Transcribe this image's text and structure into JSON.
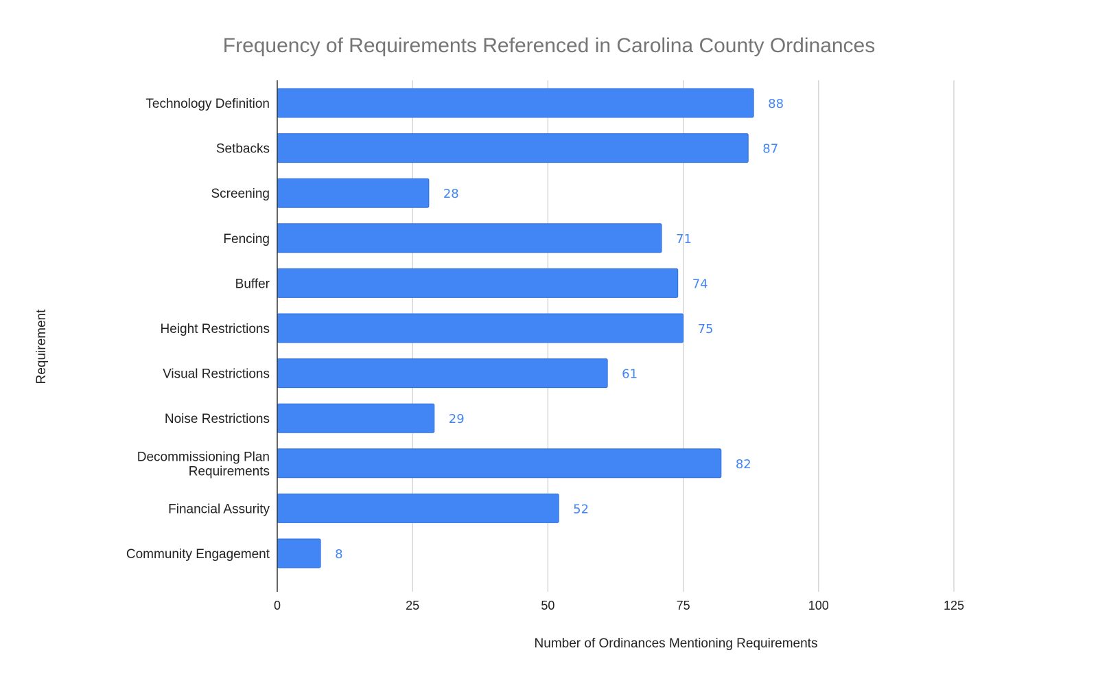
{
  "chart_data": {
    "type": "bar",
    "orientation": "horizontal",
    "title": "Frequency of Requirements Referenced in Carolina County Ordinances",
    "xlabel": "Number of Ordinances Mentioning Requirements",
    "ylabel": "Requirement",
    "xlim": [
      0,
      125
    ],
    "xticks": [
      0,
      25,
      50,
      75,
      100,
      125
    ],
    "grid": true,
    "legend": "none",
    "bar_color": "#4285f4",
    "label_color": "#4285f4",
    "categories": [
      [
        "Technology Definition"
      ],
      [
        "Setbacks"
      ],
      [
        "Screening"
      ],
      [
        "Fencing"
      ],
      [
        "Buffer"
      ],
      [
        "Height Restrictions"
      ],
      [
        "Visual Restrictions"
      ],
      [
        "Noise Restrictions"
      ],
      [
        "Decommissioning Plan",
        "Requirements"
      ],
      [
        "Financial Assurity"
      ],
      [
        "Community Engagement"
      ]
    ],
    "values": [
      88,
      87,
      28,
      71,
      74,
      75,
      61,
      29,
      82,
      52,
      8
    ]
  }
}
